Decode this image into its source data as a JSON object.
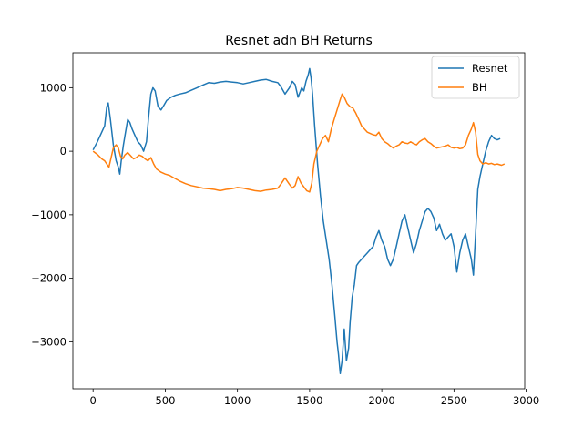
{
  "chart_data": {
    "type": "line",
    "title": "Resnet adn BH Returns",
    "xlabel": "",
    "ylabel": "",
    "xlim": [
      -140,
      2990
    ],
    "ylim": [
      -3740,
      1550
    ],
    "x_ticks": [
      0,
      500,
      1000,
      1500,
      2000,
      2500,
      3000
    ],
    "y_ticks": [
      1000,
      0,
      -1000,
      -2000,
      -3000
    ],
    "grid": false,
    "legend_position": "top-right",
    "series": [
      {
        "name": "Resnet",
        "color": "#1f77b4",
        "points": [
          [
            0,
            20
          ],
          [
            30,
            150
          ],
          [
            60,
            300
          ],
          [
            80,
            400
          ],
          [
            95,
            700
          ],
          [
            105,
            760
          ],
          [
            120,
            500
          ],
          [
            140,
            100
          ],
          [
            160,
            -150
          ],
          [
            175,
            -250
          ],
          [
            185,
            -360
          ],
          [
            195,
            -150
          ],
          [
            210,
            100
          ],
          [
            225,
            300
          ],
          [
            240,
            500
          ],
          [
            255,
            450
          ],
          [
            270,
            350
          ],
          [
            290,
            250
          ],
          [
            310,
            150
          ],
          [
            330,
            100
          ],
          [
            350,
            0
          ],
          [
            370,
            150
          ],
          [
            385,
            550
          ],
          [
            400,
            900
          ],
          [
            415,
            1000
          ],
          [
            430,
            950
          ],
          [
            450,
            700
          ],
          [
            470,
            650
          ],
          [
            490,
            720
          ],
          [
            510,
            800
          ],
          [
            540,
            850
          ],
          [
            570,
            880
          ],
          [
            600,
            900
          ],
          [
            640,
            920
          ],
          [
            680,
            960
          ],
          [
            720,
            1000
          ],
          [
            760,
            1040
          ],
          [
            800,
            1080
          ],
          [
            840,
            1070
          ],
          [
            880,
            1090
          ],
          [
            920,
            1100
          ],
          [
            960,
            1090
          ],
          [
            1000,
            1080
          ],
          [
            1040,
            1060
          ],
          [
            1080,
            1080
          ],
          [
            1120,
            1100
          ],
          [
            1160,
            1120
          ],
          [
            1200,
            1130
          ],
          [
            1240,
            1100
          ],
          [
            1280,
            1080
          ],
          [
            1300,
            1020
          ],
          [
            1330,
            900
          ],
          [
            1360,
            1000
          ],
          [
            1380,
            1100
          ],
          [
            1400,
            1050
          ],
          [
            1420,
            850
          ],
          [
            1445,
            1000
          ],
          [
            1460,
            950
          ],
          [
            1475,
            1100
          ],
          [
            1490,
            1200
          ],
          [
            1500,
            1300
          ],
          [
            1510,
            1150
          ],
          [
            1520,
            900
          ],
          [
            1535,
            400
          ],
          [
            1555,
            -200
          ],
          [
            1575,
            -700
          ],
          [
            1595,
            -1100
          ],
          [
            1615,
            -1400
          ],
          [
            1635,
            -1700
          ],
          [
            1655,
            -2100
          ],
          [
            1675,
            -2600
          ],
          [
            1690,
            -3000
          ],
          [
            1700,
            -3200
          ],
          [
            1712,
            -3500
          ],
          [
            1725,
            -3300
          ],
          [
            1740,
            -2800
          ],
          [
            1755,
            -3300
          ],
          [
            1770,
            -3100
          ],
          [
            1780,
            -2700
          ],
          [
            1795,
            -2300
          ],
          [
            1810,
            -2100
          ],
          [
            1825,
            -1800
          ],
          [
            1840,
            -1750
          ],
          [
            1860,
            -1700
          ],
          [
            1880,
            -1650
          ],
          [
            1900,
            -1600
          ],
          [
            1920,
            -1550
          ],
          [
            1940,
            -1500
          ],
          [
            1960,
            -1350
          ],
          [
            1980,
            -1250
          ],
          [
            2000,
            -1400
          ],
          [
            2020,
            -1500
          ],
          [
            2040,
            -1700
          ],
          [
            2060,
            -1800
          ],
          [
            2080,
            -1700
          ],
          [
            2100,
            -1500
          ],
          [
            2120,
            -1300
          ],
          [
            2140,
            -1100
          ],
          [
            2160,
            -1000
          ],
          [
            2180,
            -1200
          ],
          [
            2200,
            -1400
          ],
          [
            2220,
            -1600
          ],
          [
            2240,
            -1450
          ],
          [
            2260,
            -1250
          ],
          [
            2280,
            -1100
          ],
          [
            2300,
            -950
          ],
          [
            2320,
            -900
          ],
          [
            2340,
            -950
          ],
          [
            2360,
            -1050
          ],
          [
            2380,
            -1250
          ],
          [
            2400,
            -1150
          ],
          [
            2420,
            -1300
          ],
          [
            2440,
            -1400
          ],
          [
            2460,
            -1350
          ],
          [
            2480,
            -1300
          ],
          [
            2500,
            -1500
          ],
          [
            2520,
            -1900
          ],
          [
            2540,
            -1600
          ],
          [
            2560,
            -1400
          ],
          [
            2580,
            -1300
          ],
          [
            2600,
            -1500
          ],
          [
            2620,
            -1700
          ],
          [
            2635,
            -1950
          ],
          [
            2650,
            -1300
          ],
          [
            2665,
            -600
          ],
          [
            2680,
            -400
          ],
          [
            2700,
            -200
          ],
          [
            2720,
            0
          ],
          [
            2740,
            150
          ],
          [
            2760,
            250
          ],
          [
            2780,
            200
          ],
          [
            2800,
            180
          ],
          [
            2820,
            200
          ]
        ]
      },
      {
        "name": "BH",
        "color": "#ff7f0e",
        "points": [
          [
            0,
            0
          ],
          [
            30,
            -50
          ],
          [
            60,
            -120
          ],
          [
            80,
            -150
          ],
          [
            95,
            -200
          ],
          [
            110,
            -250
          ],
          [
            125,
            -100
          ],
          [
            140,
            50
          ],
          [
            160,
            100
          ],
          [
            175,
            50
          ],
          [
            190,
            -80
          ],
          [
            205,
            -120
          ],
          [
            220,
            -60
          ],
          [
            240,
            -20
          ],
          [
            260,
            -70
          ],
          [
            280,
            -120
          ],
          [
            300,
            -100
          ],
          [
            320,
            -60
          ],
          [
            340,
            -80
          ],
          [
            360,
            -120
          ],
          [
            380,
            -150
          ],
          [
            400,
            -100
          ],
          [
            420,
            -200
          ],
          [
            440,
            -280
          ],
          [
            470,
            -330
          ],
          [
            500,
            -360
          ],
          [
            530,
            -380
          ],
          [
            560,
            -420
          ],
          [
            600,
            -470
          ],
          [
            640,
            -510
          ],
          [
            680,
            -540
          ],
          [
            720,
            -560
          ],
          [
            760,
            -580
          ],
          [
            800,
            -590
          ],
          [
            840,
            -600
          ],
          [
            880,
            -620
          ],
          [
            920,
            -600
          ],
          [
            960,
            -590
          ],
          [
            1000,
            -570
          ],
          [
            1040,
            -580
          ],
          [
            1080,
            -600
          ],
          [
            1120,
            -620
          ],
          [
            1160,
            -630
          ],
          [
            1200,
            -610
          ],
          [
            1240,
            -600
          ],
          [
            1280,
            -580
          ],
          [
            1300,
            -520
          ],
          [
            1330,
            -420
          ],
          [
            1360,
            -520
          ],
          [
            1380,
            -580
          ],
          [
            1400,
            -540
          ],
          [
            1420,
            -400
          ],
          [
            1440,
            -500
          ],
          [
            1460,
            -560
          ],
          [
            1480,
            -620
          ],
          [
            1500,
            -640
          ],
          [
            1515,
            -500
          ],
          [
            1530,
            -200
          ],
          [
            1550,
            0
          ],
          [
            1570,
            100
          ],
          [
            1590,
            200
          ],
          [
            1610,
            250
          ],
          [
            1630,
            150
          ],
          [
            1650,
            350
          ],
          [
            1670,
            500
          ],
          [
            1690,
            650
          ],
          [
            1710,
            800
          ],
          [
            1725,
            900
          ],
          [
            1740,
            850
          ],
          [
            1760,
            750
          ],
          [
            1780,
            700
          ],
          [
            1800,
            680
          ],
          [
            1820,
            600
          ],
          [
            1840,
            500
          ],
          [
            1860,
            400
          ],
          [
            1880,
            350
          ],
          [
            1900,
            300
          ],
          [
            1920,
            280
          ],
          [
            1940,
            260
          ],
          [
            1960,
            250
          ],
          [
            1980,
            300
          ],
          [
            2000,
            200
          ],
          [
            2020,
            150
          ],
          [
            2040,
            120
          ],
          [
            2060,
            80
          ],
          [
            2080,
            50
          ],
          [
            2100,
            80
          ],
          [
            2120,
            100
          ],
          [
            2140,
            150
          ],
          [
            2160,
            130
          ],
          [
            2180,
            120
          ],
          [
            2200,
            150
          ],
          [
            2220,
            120
          ],
          [
            2240,
            100
          ],
          [
            2260,
            150
          ],
          [
            2280,
            180
          ],
          [
            2300,
            200
          ],
          [
            2320,
            150
          ],
          [
            2340,
            120
          ],
          [
            2360,
            80
          ],
          [
            2380,
            50
          ],
          [
            2400,
            60
          ],
          [
            2420,
            70
          ],
          [
            2440,
            80
          ],
          [
            2460,
            100
          ],
          [
            2480,
            60
          ],
          [
            2500,
            50
          ],
          [
            2520,
            60
          ],
          [
            2540,
            40
          ],
          [
            2560,
            50
          ],
          [
            2580,
            100
          ],
          [
            2600,
            250
          ],
          [
            2620,
            350
          ],
          [
            2635,
            450
          ],
          [
            2650,
            300
          ],
          [
            2665,
            -50
          ],
          [
            2680,
            -150
          ],
          [
            2700,
            -200
          ],
          [
            2720,
            -180
          ],
          [
            2740,
            -200
          ],
          [
            2760,
            -190
          ],
          [
            2780,
            -210
          ],
          [
            2800,
            -200
          ],
          [
            2830,
            -220
          ],
          [
            2850,
            -200
          ]
        ]
      }
    ]
  }
}
